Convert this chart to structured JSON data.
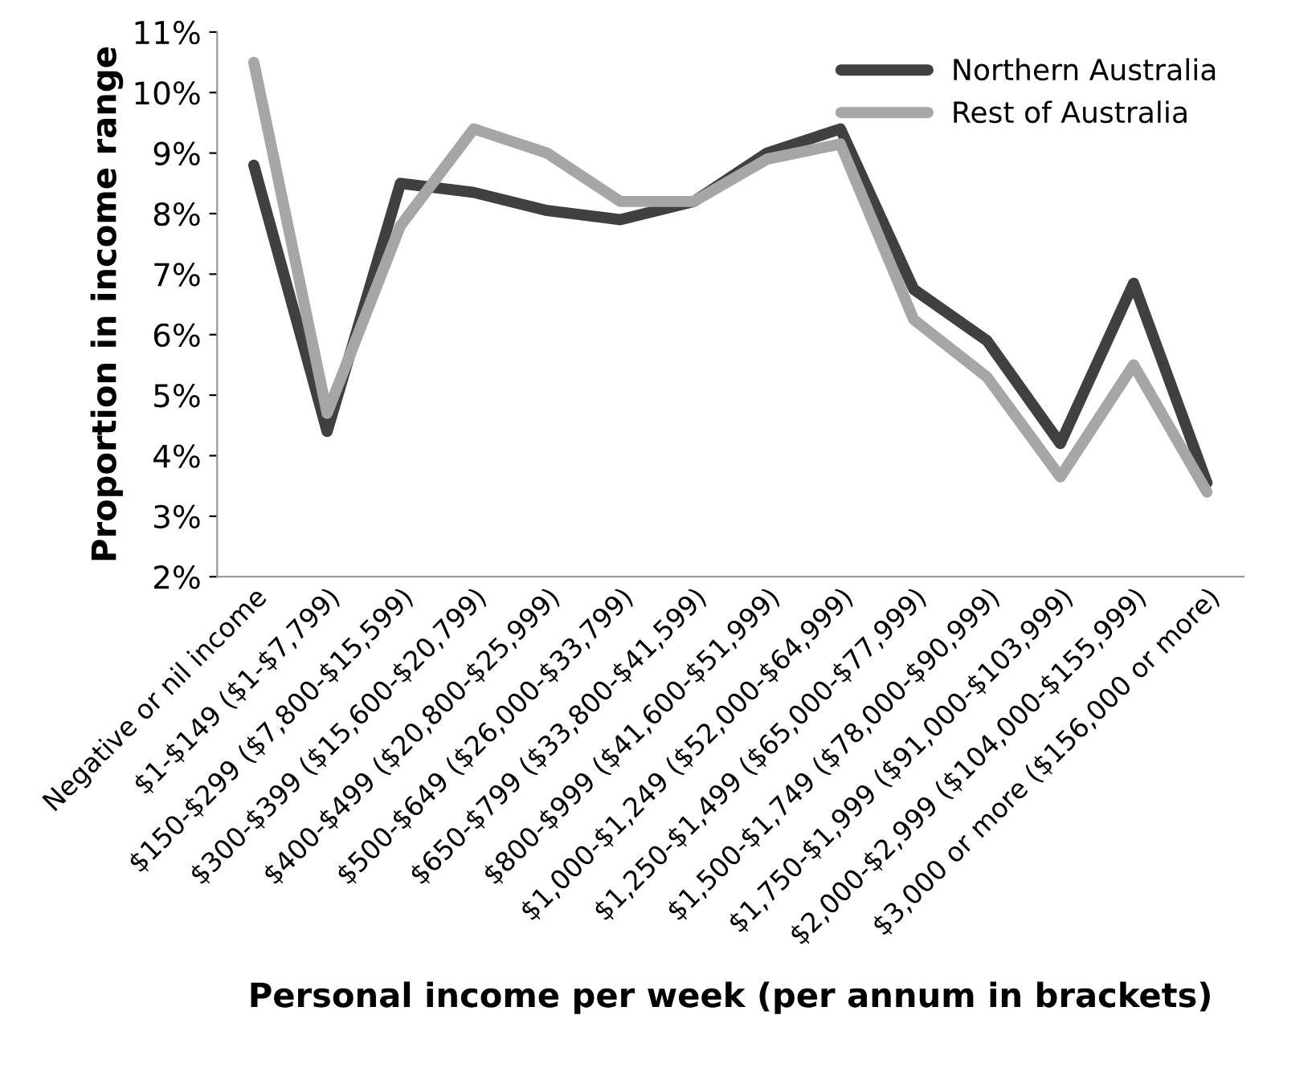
{
  "chart_data": {
    "type": "line",
    "xlabel": "Personal income per week (per annum in brackets)",
    "ylabel": "Proportion in income range",
    "categories": [
      "Negative or nil income",
      "$1-$149 ($1-$7,799)",
      "$150-$299 ($7,800-$15,599)",
      "$300-$399 ($15,600-$20,799)",
      "$400-$499 ($20,800-$25,999)",
      "$500-$649 ($26,000-$33,799)",
      "$650-$799 ($33,800-$41,599)",
      "$800-$999 ($41,600-$51,999)",
      "$1,000-$1,249 ($52,000-$64,999)",
      "$1,250-$1,499 ($65,000-$77,999)",
      "$1,500-$1,749 ($78,000-$90,999)",
      "$1,750-$1,999 ($91,000-$103,999)",
      "$2,000-$2,999 ($104,000-$155,999)",
      "$3,000 or more ($156,000 or more)"
    ],
    "series": [
      {
        "name": "Northern Australia",
        "color": "#404040",
        "values": [
          8.8,
          4.4,
          8.5,
          8.35,
          8.05,
          7.9,
          8.2,
          9.0,
          9.4,
          6.75,
          5.9,
          4.2,
          6.85,
          3.55
        ]
      },
      {
        "name": "Rest of Australia",
        "color": "#a6a6a6",
        "values": [
          10.5,
          4.7,
          7.8,
          9.4,
          9.0,
          8.2,
          8.2,
          8.9,
          9.15,
          6.25,
          5.3,
          3.65,
          5.5,
          3.4
        ]
      }
    ],
    "ylim": [
      2,
      11
    ],
    "yticks": [
      {
        "value": 2,
        "label": "2%"
      },
      {
        "value": 3,
        "label": "3%"
      },
      {
        "value": 4,
        "label": "4%"
      },
      {
        "value": 5,
        "label": "5%"
      },
      {
        "value": 6,
        "label": "6%"
      },
      {
        "value": 7,
        "label": "7%"
      },
      {
        "value": 8,
        "label": "8%"
      },
      {
        "value": 9,
        "label": "9%"
      },
      {
        "value": 10,
        "label": "10%"
      },
      {
        "value": 11,
        "label": "11%"
      }
    ],
    "grid": false,
    "legend": "top right",
    "marker": "none",
    "line_style": "solid"
  }
}
